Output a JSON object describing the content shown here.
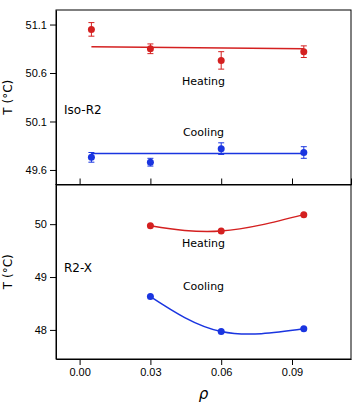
{
  "chart_data": [
    {
      "type": "scatter",
      "annotations": [
        "Iso-R2"
      ],
      "series": [
        {
          "name": "Heating",
          "color": "#d42020",
          "marker": "circle",
          "x": [
            0.005,
            0.03,
            0.06,
            0.095
          ],
          "values": [
            51.05,
            50.85,
            50.73,
            50.82
          ],
          "error": [
            0.07,
            0.05,
            0.09,
            0.06
          ]
        },
        {
          "name": "Cooling",
          "color": "#1a35e0",
          "marker": "circle",
          "x": [
            0.005,
            0.03,
            0.06,
            0.095
          ],
          "values": [
            49.73,
            49.68,
            49.82,
            49.78
          ],
          "error": [
            0.05,
            0.04,
            0.06,
            0.06
          ]
        },
        {
          "type": "line",
          "line_style": "solid",
          "color": "#d42020",
          "x": [
            0.005,
            0.095
          ],
          "values": [
            50.87,
            50.85
          ]
        },
        {
          "type": "line",
          "line_style": "solid",
          "color": "#1a35e0",
          "x": [
            0.005,
            0.095
          ],
          "values": [
            49.77,
            49.77
          ]
        }
      ],
      "xlim": [
        -0.01,
        0.115
      ],
      "xticks": [
        0,
        0.03,
        0.06,
        0.09
      ],
      "ylim": [
        49.45,
        51.25
      ],
      "yticks": [
        49.6,
        50.1,
        50.6,
        51.1
      ],
      "ylabel": "T (°C)",
      "tick_labels": "y",
      "grid": false
    },
    {
      "type": "line",
      "annotations": [
        "R2-X"
      ],
      "series": [
        {
          "name": "Heating",
          "color": "#d42020",
          "marker": "circle",
          "line_style": "smooth",
          "x": [
            0.03,
            0.06,
            0.095
          ],
          "values": [
            49.97,
            49.87,
            50.18
          ]
        },
        {
          "name": "Cooling",
          "color": "#1a35e0",
          "marker": "circle",
          "line_style": "smooth",
          "x": [
            0.03,
            0.06,
            0.095
          ],
          "values": [
            48.63,
            47.97,
            48.02
          ]
        }
      ],
      "xlim": [
        -0.01,
        0.115
      ],
      "xticks": [
        {
          "value": 0,
          "label": "0.00"
        },
        {
          "value": 0.03,
          "label": "0.03"
        },
        {
          "value": 0.06,
          "label": "0.06"
        },
        {
          "value": 0.09,
          "label": "0.09"
        }
      ],
      "ylim": [
        47.45,
        50.75
      ],
      "yticks": [
        48,
        49,
        50
      ],
      "xlabel": "ρ",
      "ylabel": "T (°C)",
      "grid": false
    }
  ]
}
